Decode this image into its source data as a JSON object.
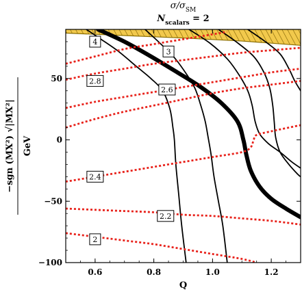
{
  "chart_data": {
    "type": "line",
    "title": "σ/σSM",
    "title_lines": [
      {
        "parts": [
          {
            "t": "σ/σ",
            "style": "italic"
          },
          {
            "t": "SM",
            "sub": true
          }
        ]
      },
      {
        "parts": [
          {
            "t": "N",
            "style": "italic",
            "weight": "bold"
          },
          {
            "t": "scalars",
            "sub": true,
            "weight": "bold"
          },
          {
            "t": " = 2",
            "weight": "bold"
          }
        ]
      }
    ],
    "xlabel": "Q",
    "ylabel": "−sgn (MX²) √|MX²|",
    "ylabel_unit": "GeV",
    "xlim": [
      0.5,
      1.3
    ],
    "ylim": [
      -100,
      90
    ],
    "x_ticks": [
      0.6,
      0.8,
      1.0,
      1.2
    ],
    "x_tick_labels": [
      "0.6",
      "0.8",
      "1.0",
      "1.2"
    ],
    "y_ticks": [
      -100,
      -50,
      0,
      50
    ],
    "y_tick_labels": [
      "−100",
      "−50",
      "0",
      "50"
    ],
    "shaded_region": {
      "name": "excluded",
      "color": "#f2c94c",
      "edge_color": "#8a6d00",
      "upper": [
        [
          0.5,
          90
        ],
        [
          1.3,
          90
        ]
      ],
      "lower": [
        [
          0.5,
          87
        ],
        [
          0.7,
          85
        ],
        [
          0.9,
          83
        ],
        [
          1.1,
          80.5
        ],
        [
          1.3,
          77
        ]
      ]
    },
    "series": [
      {
        "style": "solid",
        "color": "#000000",
        "width": 1.8,
        "points": [
          [
            0.57,
            90
          ],
          [
            0.62,
            82
          ],
          [
            0.68,
            72
          ],
          [
            0.74,
            60
          ],
          [
            0.79,
            50
          ],
          [
            0.83,
            40
          ],
          [
            0.855,
            25
          ],
          [
            0.865,
            10
          ],
          [
            0.87,
            0
          ],
          [
            0.875,
            -20
          ],
          [
            0.885,
            -45
          ],
          [
            0.895,
            -70
          ],
          [
            0.91,
            -100
          ]
        ]
      },
      {
        "style": "solid",
        "color": "#000000",
        "width": 1.8,
        "points": [
          [
            0.77,
            90
          ],
          [
            0.82,
            79
          ],
          [
            0.87,
            67
          ],
          [
            0.91,
            54
          ],
          [
            0.94,
            42
          ],
          [
            0.96,
            28
          ],
          [
            0.975,
            15
          ],
          [
            0.985,
            2
          ],
          [
            0.995,
            -12
          ],
          [
            1.005,
            -30
          ],
          [
            1.02,
            -50
          ],
          [
            1.035,
            -70
          ],
          [
            1.05,
            -100
          ]
        ]
      },
      {
        "style": "solid",
        "color": "#000000",
        "width": 6,
        "points": [
          [
            0.61,
            90
          ],
          [
            0.7,
            80
          ],
          [
            0.79,
            68
          ],
          [
            0.88,
            55
          ],
          [
            0.96,
            43
          ],
          [
            1.03,
            30
          ],
          [
            1.085,
            15
          ],
          [
            1.105,
            0
          ],
          [
            1.115,
            -12
          ],
          [
            1.13,
            -25
          ],
          [
            1.16,
            -38
          ],
          [
            1.2,
            -48
          ],
          [
            1.25,
            -56
          ],
          [
            1.3,
            -63
          ]
        ]
      },
      {
        "style": "solid",
        "color": "#000000",
        "width": 1.8,
        "points": [
          [
            0.92,
            90
          ],
          [
            0.99,
            79
          ],
          [
            1.05,
            66
          ],
          [
            1.09,
            53
          ],
          [
            1.12,
            40
          ],
          [
            1.135,
            28
          ],
          [
            1.145,
            15
          ],
          [
            1.16,
            5
          ],
          [
            1.19,
            -3
          ],
          [
            1.23,
            -10
          ],
          [
            1.27,
            -18
          ],
          [
            1.3,
            -23
          ]
        ]
      },
      {
        "style": "solid",
        "color": "#000000",
        "width": 1.8,
        "points": [
          [
            1.02,
            90
          ],
          [
            1.08,
            80
          ],
          [
            1.14,
            68
          ],
          [
            1.175,
            55
          ],
          [
            1.195,
            42
          ],
          [
            1.205,
            28
          ],
          [
            1.21,
            15
          ],
          [
            1.215,
            2
          ],
          [
            1.23,
            -10
          ],
          [
            1.26,
            -20
          ],
          [
            1.29,
            -28
          ],
          [
            1.3,
            -30
          ]
        ]
      },
      {
        "style": "solid",
        "color": "#000000",
        "width": 1.8,
        "points": [
          [
            1.12,
            90
          ],
          [
            1.18,
            80
          ],
          [
            1.23,
            70
          ],
          [
            1.26,
            58
          ],
          [
            1.28,
            48
          ],
          [
            1.3,
            40
          ]
        ]
      },
      {
        "style": "dotted",
        "color": "#e8221b",
        "width": 2.8,
        "points": [
          [
            0.5,
            62
          ],
          [
            0.6,
            68
          ],
          [
            0.7,
            74
          ],
          [
            0.8,
            78
          ],
          [
            0.9,
            82
          ],
          [
            1.0,
            86
          ],
          [
            1.05,
            88
          ]
        ]
      },
      {
        "style": "dotted",
        "color": "#e8221b",
        "width": 2.8,
        "points": [
          [
            0.5,
            49
          ],
          [
            0.6,
            54
          ],
          [
            0.7,
            58
          ],
          [
            0.8,
            62
          ],
          [
            0.9,
            65
          ],
          [
            1.0,
            68
          ],
          [
            1.1,
            71
          ],
          [
            1.2,
            73
          ],
          [
            1.3,
            75
          ]
        ]
      },
      {
        "style": "dotted",
        "color": "#e8221b",
        "width": 2.8,
        "points": [
          [
            0.5,
            26
          ],
          [
            0.6,
            31
          ],
          [
            0.7,
            35
          ],
          [
            0.8,
            39
          ],
          [
            0.9,
            43
          ],
          [
            1.0,
            47
          ],
          [
            1.1,
            51
          ],
          [
            1.2,
            55
          ],
          [
            1.3,
            58
          ]
        ]
      },
      {
        "style": "dotted",
        "color": "#e8221b",
        "width": 2.8,
        "points": [
          [
            0.5,
            10
          ],
          [
            0.6,
            17
          ],
          [
            0.7,
            23
          ],
          [
            0.8,
            28
          ],
          [
            0.9,
            33
          ],
          [
            1.0,
            38
          ],
          [
            1.1,
            42
          ],
          [
            1.2,
            45
          ],
          [
            1.3,
            48
          ]
        ]
      },
      {
        "style": "dotted",
        "color": "#e8221b",
        "width": 2.8,
        "points": [
          [
            0.5,
            -34
          ],
          [
            0.6,
            -30
          ],
          [
            0.7,
            -26
          ],
          [
            0.8,
            -22
          ],
          [
            0.9,
            -18
          ],
          [
            1.0,
            -14
          ],
          [
            1.1,
            -10
          ],
          [
            1.13,
            -6
          ],
          [
            1.14,
            0
          ],
          [
            1.15,
            4
          ],
          [
            1.2,
            7
          ],
          [
            1.3,
            12
          ]
        ]
      },
      {
        "style": "dotted",
        "color": "#e8221b",
        "width": 2.8,
        "points": [
          [
            0.5,
            -56
          ],
          [
            0.6,
            -57
          ],
          [
            0.7,
            -58
          ],
          [
            0.8,
            -59
          ],
          [
            0.9,
            -61
          ],
          [
            1.0,
            -62
          ],
          [
            1.1,
            -64
          ],
          [
            1.2,
            -66
          ],
          [
            1.3,
            -69
          ]
        ]
      },
      {
        "style": "dotted",
        "color": "#e8221b",
        "width": 2.8,
        "points": [
          [
            0.5,
            -76
          ],
          [
            0.6,
            -79
          ],
          [
            0.7,
            -82
          ],
          [
            0.8,
            -85
          ],
          [
            0.9,
            -89
          ],
          [
            1.0,
            -93
          ],
          [
            1.1,
            -97
          ],
          [
            1.15,
            -100
          ]
        ]
      }
    ],
    "labels": [
      {
        "text": "4",
        "x": 0.6,
        "y": 80
      },
      {
        "text": "3",
        "x": 0.85,
        "y": 72
      },
      {
        "text": "2.8",
        "x": 0.6,
        "y": 48
      },
      {
        "text": "2.6",
        "x": 0.845,
        "y": 41
      },
      {
        "text": "2.4",
        "x": 0.6,
        "y": -30
      },
      {
        "text": "2.2",
        "x": 0.84,
        "y": -62
      },
      {
        "text": "2",
        "x": 0.6,
        "y": -81
      }
    ]
  }
}
